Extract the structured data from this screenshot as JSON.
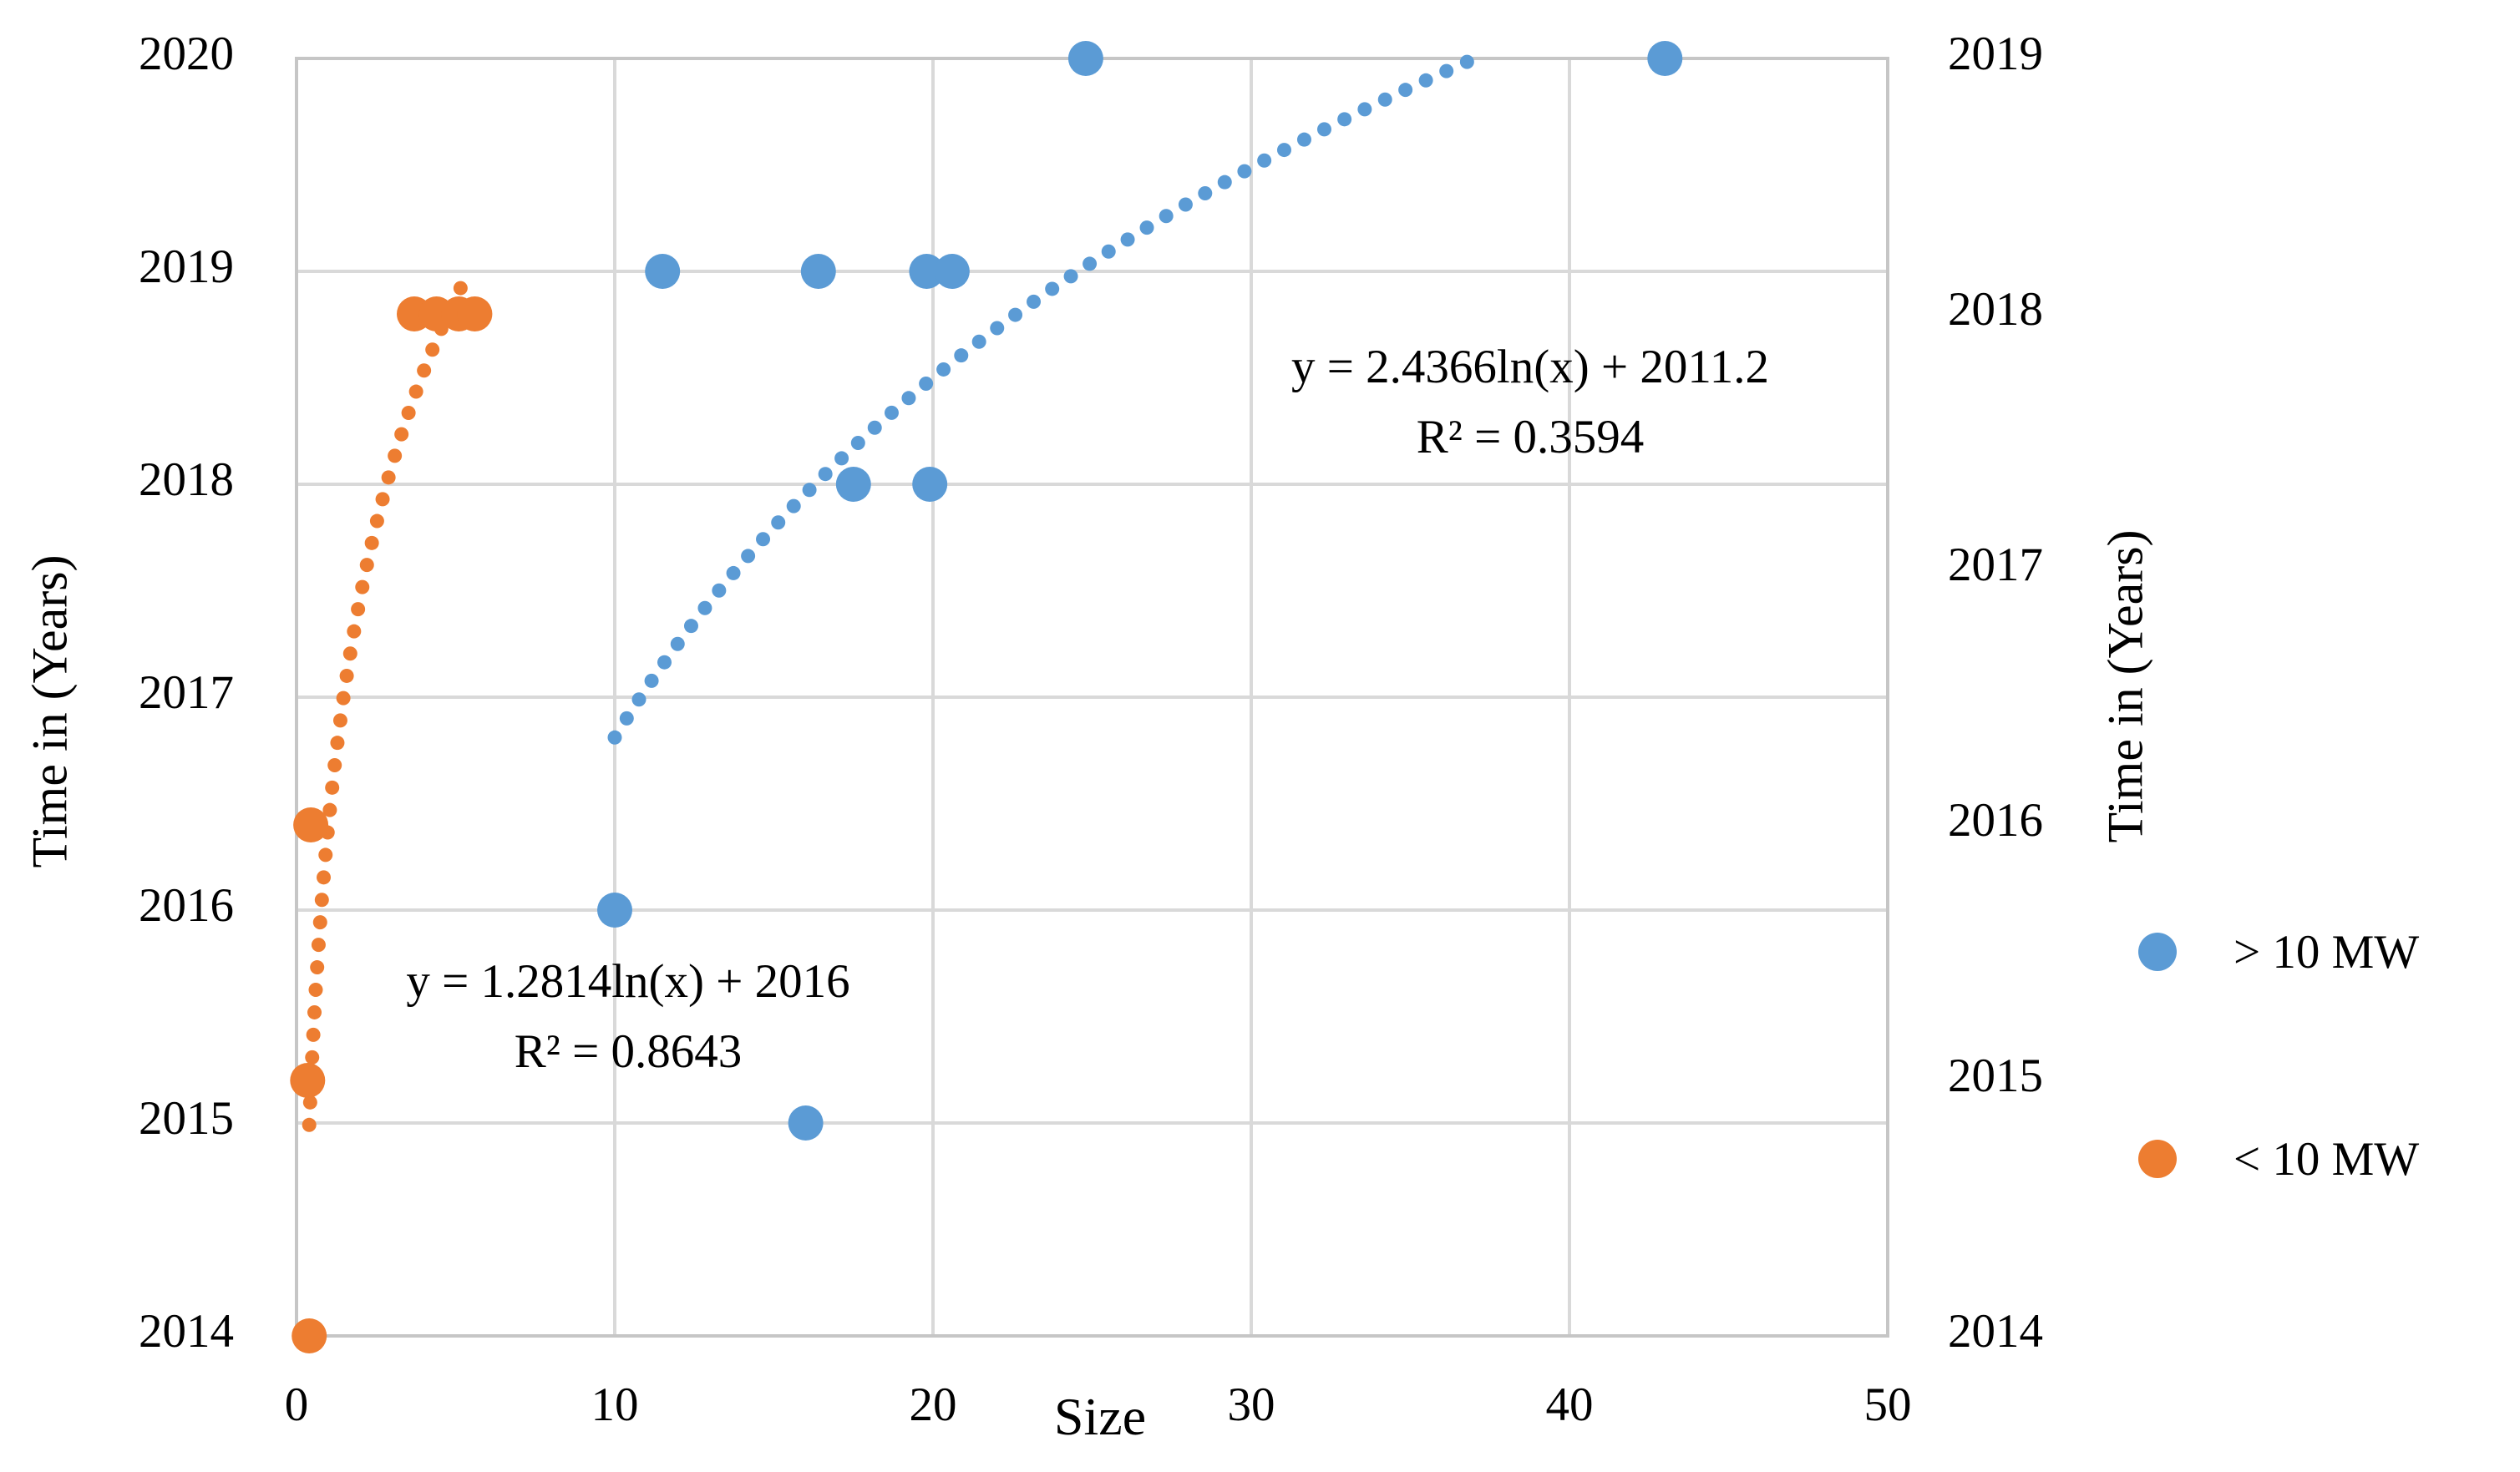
{
  "figure": {
    "background": "#ffffff",
    "grid_color": "#D9D9D9",
    "frame_color": "#C6C6C6"
  },
  "chart_data": {
    "type": "scatter",
    "grid": true,
    "legend_position": "right",
    "x_axis": {
      "title": "Size",
      "min": 0,
      "max": 50,
      "ticks": [
        0,
        10,
        20,
        30,
        40,
        50
      ]
    },
    "y_axis_left": {
      "title": "Time in (Years)",
      "min": 2014,
      "max": 2020,
      "ticks": [
        2014,
        2015,
        2016,
        2017,
        2018,
        2019,
        2020
      ]
    },
    "y_axis_right": {
      "title": "Time in (Years)",
      "min": 2014,
      "max": 2019,
      "ticks": [
        2014,
        2015,
        2016,
        2017,
        2018,
        2019
      ]
    },
    "series": [
      {
        "name": "> 10 MW",
        "color": "#5B9BD5",
        "axis": "left",
        "marker_radius": 21,
        "points": [
          [
            24.8,
            2020
          ],
          [
            43,
            2020
          ],
          [
            11.5,
            2019
          ],
          [
            16.4,
            2019
          ],
          [
            19.8,
            2019
          ],
          [
            20.6,
            2019
          ],
          [
            17.5,
            2018
          ],
          [
            19.9,
            2018
          ],
          [
            10,
            2016
          ],
          [
            16,
            2015
          ]
        ],
        "trendline": {
          "type": "logarithmic",
          "a": 2.4366,
          "b": 2011.2,
          "x_start": 10,
          "x_end": 37.2,
          "equation": "y = 2.4366ln(x) + 2011.2",
          "r2_label": "R² = 0.3594",
          "r_squared": 0.3594
        }
      },
      {
        "name": "< 10 MW",
        "color": "#ED7D31",
        "axis": "right",
        "marker_radius": 21,
        "points": [
          [
            3.7,
            2018
          ],
          [
            4.4,
            2018
          ],
          [
            5.1,
            2018
          ],
          [
            5.6,
            2018
          ],
          [
            0.45,
            2016
          ],
          [
            0.35,
            2015
          ],
          [
            0.4,
            2014
          ]
        ],
        "trendline": {
          "type": "logarithmic",
          "a": 1.2814,
          "b": 2016,
          "x_start": 0.4,
          "x_end": 5.45,
          "equation": "y = 1.2814ln(x) + 2016",
          "r2_label": "R² = 0.8643",
          "r_squared": 0.8643
        }
      }
    ]
  }
}
